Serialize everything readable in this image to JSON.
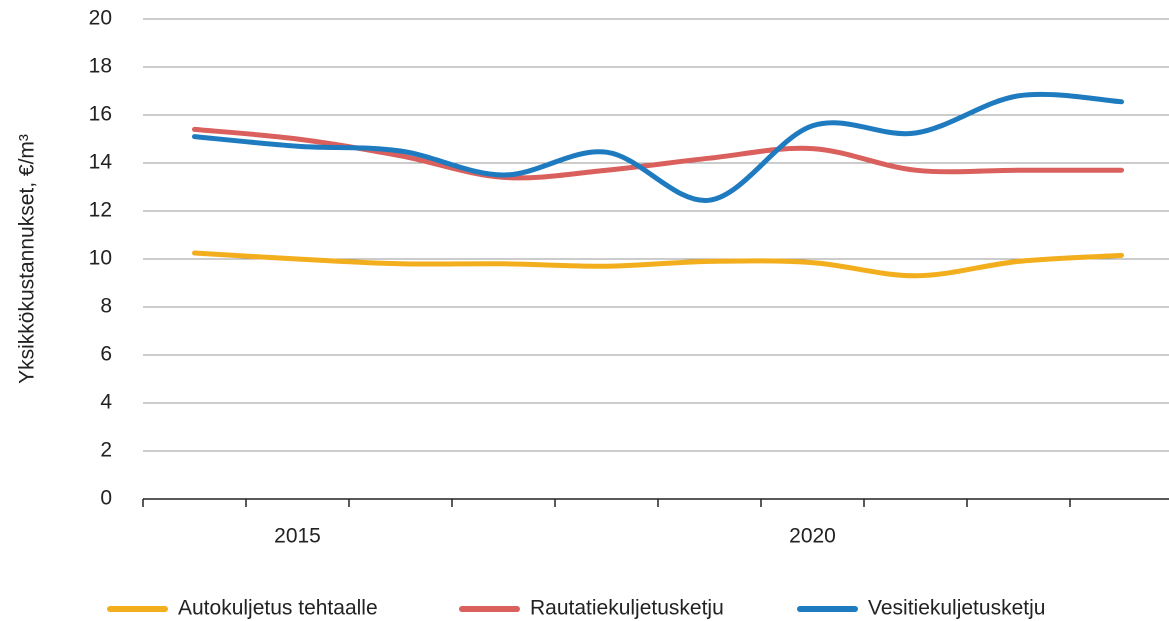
{
  "chart_data": {
    "type": "line",
    "ylabel": "Yksikkökustannukset, €/m³",
    "categories": [
      null,
      "2015",
      null,
      null,
      null,
      null,
      "2020",
      null,
      null,
      null
    ],
    "series": [
      {
        "name": "Autokuljetus tehtaalle",
        "color": "#f2ae1c",
        "values": [
          10.25,
          10.0,
          9.8,
          9.8,
          9.7,
          9.9,
          9.85,
          9.3,
          9.9,
          10.15
        ]
      },
      {
        "name": "Rautatiekuljetusketju",
        "color": "#d9605d",
        "values": [
          15.4,
          15.0,
          14.3,
          13.4,
          13.7,
          14.2,
          14.6,
          13.7,
          13.7,
          13.7
        ]
      },
      {
        "name": "Vesitiekuljetusketju",
        "color": "#1f7bbf",
        "values": [
          15.1,
          14.7,
          14.5,
          13.5,
          14.45,
          12.45,
          15.55,
          15.25,
          16.8,
          16.55
        ]
      }
    ],
    "ylim": [
      0,
      20
    ],
    "yticks": [
      0,
      2,
      4,
      6,
      8,
      10,
      12,
      14,
      16,
      18,
      20
    ],
    "grid": true,
    "legend": "bottom"
  }
}
